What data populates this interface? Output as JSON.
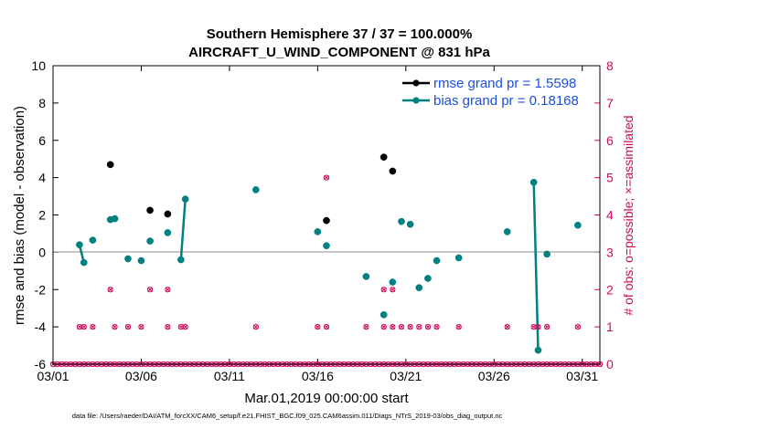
{
  "chart_data": {
    "type": "scatter",
    "title": "Southern Hemisphere 37 / 37 = 100.000%",
    "subtitle": "AIRCRAFT_U_WIND_COMPONENT @ 831 hPa",
    "xlabel": "Mar.01,2019 00:00:00 start",
    "ylabel": "rmse and bias (model - observation)",
    "ylabel_right": "# of obs: o=possible; ×=assimilated",
    "x_ticks": [
      {
        "value": 1,
        "label": "03/01"
      },
      {
        "value": 6,
        "label": "03/06"
      },
      {
        "value": 11,
        "label": "03/11"
      },
      {
        "value": 16,
        "label": "03/16"
      },
      {
        "value": 21,
        "label": "03/21"
      },
      {
        "value": 26,
        "label": "03/26"
      },
      {
        "value": 31,
        "label": "03/31"
      }
    ],
    "xlim": [
      1,
      32
    ],
    "ylim": [
      -6,
      10
    ],
    "yticks": [
      -6,
      -4,
      -2,
      0,
      2,
      4,
      6,
      8,
      10
    ],
    "ylim_right": [
      0,
      8
    ],
    "yticks_right": [
      0,
      1,
      2,
      3,
      4,
      5,
      6,
      7,
      8
    ],
    "legend": [
      {
        "name": "rmse grand pr = 1.5598",
        "color": "#000000"
      },
      {
        "name": "bias grand pr = 0.18168",
        "color": "#008080"
      }
    ],
    "legend_position": "top-right",
    "footer": "data file: /Users/raeder/DAI/ATM_forcXX/CAM6_setup/f.e21.FHIST_BGC.f09_025.CAM6assim.011/Diags_NTrS_2019-03/obs_diag_output.nc",
    "series": [
      {
        "name": "rmse",
        "color": "#000000",
        "points": [
          [
            4.25,
            4.7
          ],
          [
            6.5,
            2.25
          ],
          [
            7.5,
            2.05
          ],
          [
            16.5,
            1.7
          ],
          [
            19.75,
            5.1
          ],
          [
            20.25,
            4.35
          ]
        ]
      },
      {
        "name": "bias",
        "color": "#008080",
        "points": [
          [
            2.5,
            0.4
          ],
          [
            2.75,
            -0.55
          ],
          [
            3.25,
            0.65
          ],
          [
            4.25,
            1.75
          ],
          [
            4.5,
            1.8
          ],
          [
            5.25,
            -0.35
          ],
          [
            6.0,
            -0.45
          ],
          [
            6.5,
            0.6
          ],
          [
            7.5,
            1.05
          ],
          [
            8.25,
            -0.4
          ],
          [
            8.5,
            2.85
          ],
          [
            12.5,
            3.35
          ],
          [
            16.0,
            1.1
          ],
          [
            16.5,
            0.35
          ],
          [
            18.75,
            -1.3
          ],
          [
            19.75,
            -3.35
          ],
          [
            20.25,
            -1.6
          ],
          [
            20.75,
            1.65
          ],
          [
            21.25,
            1.5
          ],
          [
            21.75,
            -1.9
          ],
          [
            22.25,
            -1.4
          ],
          [
            22.75,
            -0.45
          ],
          [
            24.0,
            -0.3
          ],
          [
            26.75,
            1.1
          ],
          [
            28.25,
            3.75
          ],
          [
            28.5,
            -5.25
          ],
          [
            29.0,
            -0.1
          ],
          [
            30.75,
            1.45
          ]
        ]
      },
      {
        "name": "bias-connected-segments",
        "color": "#008080",
        "segments": [
          [
            [
              2.5,
              0.4
            ],
            [
              2.75,
              -0.55
            ]
          ],
          [
            [
              8.25,
              -0.4
            ],
            [
              8.5,
              2.85
            ]
          ],
          [
            [
              28.25,
              3.75
            ],
            [
              28.5,
              -5.25
            ]
          ]
        ]
      },
      {
        "name": "obs-possible",
        "color": "#d10a5c",
        "points": [
          [
            2.5,
            1
          ],
          [
            2.75,
            1
          ],
          [
            3.25,
            1
          ],
          [
            4.25,
            2
          ],
          [
            4.5,
            1
          ],
          [
            5.25,
            1
          ],
          [
            6.0,
            1
          ],
          [
            6.5,
            2
          ],
          [
            7.5,
            2
          ],
          [
            7.5,
            1
          ],
          [
            8.25,
            1
          ],
          [
            8.5,
            1
          ],
          [
            12.5,
            1
          ],
          [
            16.0,
            1
          ],
          [
            16.5,
            5
          ],
          [
            16.5,
            1
          ],
          [
            18.75,
            1
          ],
          [
            19.75,
            2
          ],
          [
            19.75,
            1
          ],
          [
            20.25,
            2
          ],
          [
            20.25,
            1
          ],
          [
            20.75,
            1
          ],
          [
            21.25,
            1
          ],
          [
            21.75,
            1
          ],
          [
            22.25,
            1
          ],
          [
            22.75,
            1
          ],
          [
            24.0,
            1
          ],
          [
            26.75,
            1
          ],
          [
            28.25,
            1
          ],
          [
            28.5,
            1
          ],
          [
            29.0,
            1
          ],
          [
            30.75,
            1
          ]
        ]
      }
    ]
  }
}
